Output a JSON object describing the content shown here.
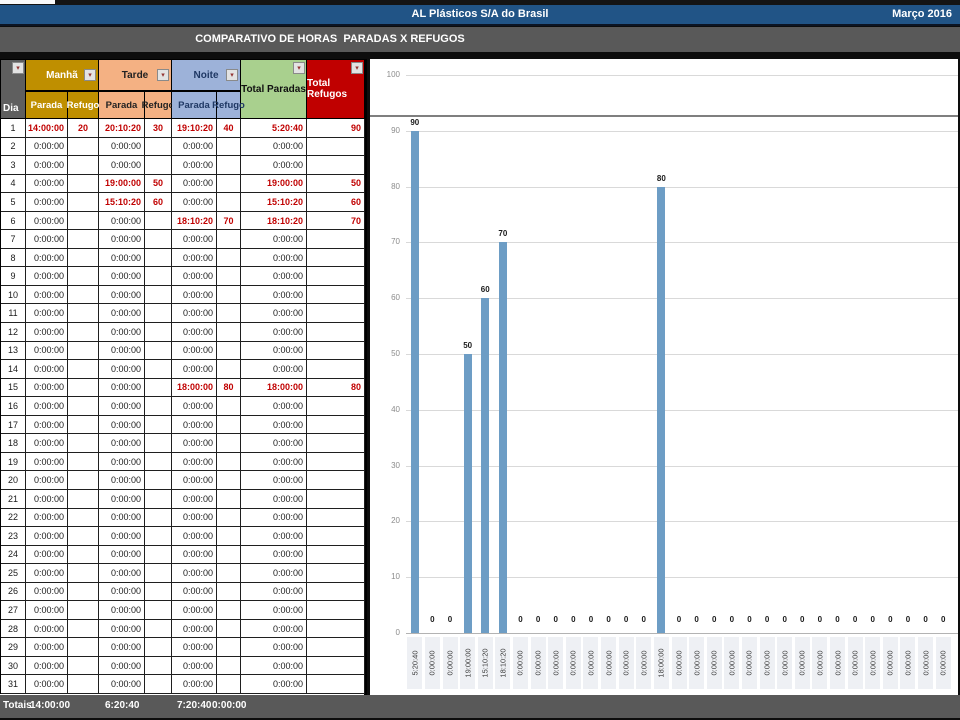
{
  "header": {
    "company": "AL Plásticos S/A do Brasil",
    "period": "Março 2016",
    "title": "COMPARATIVO DE HORAS  PARADAS X REFUGOS",
    "colors": {
      "titlebar_blue": "#215486",
      "band_gray": "#595959",
      "manha_gold": "#BF8F00",
      "tarde_salmon": "#F4B183",
      "noite_blue": "#9DB2D9",
      "total_paradas_green": "#A9D08E",
      "total_refugos_red": "#C00000",
      "value_red": "#C00000",
      "bar_blue": "#6D9DC5"
    }
  },
  "table": {
    "dia_label": "Dia",
    "groups": [
      {
        "label": "Manhã",
        "sub": [
          "Parada",
          "Refugo"
        ]
      },
      {
        "label": "Tarde",
        "sub": [
          "Parada",
          "Refugo"
        ]
      },
      {
        "label": "Noite",
        "sub": [
          "Parada",
          "Refugo"
        ]
      },
      {
        "label": "Total Paradas"
      },
      {
        "label": "Total Refugos"
      }
    ],
    "rows": [
      [
        "1",
        "14:00:00",
        "20",
        "20:10:20",
        "30",
        "19:10:20",
        "40",
        "5:20:40",
        "90"
      ],
      [
        "2",
        "0:00:00",
        "",
        "0:00:00",
        "",
        "0:00:00",
        "",
        "0:00:00",
        ""
      ],
      [
        "3",
        "0:00:00",
        "",
        "0:00:00",
        "",
        "0:00:00",
        "",
        "0:00:00",
        ""
      ],
      [
        "4",
        "0:00:00",
        "",
        "19:00:00",
        "50",
        "0:00:00",
        "",
        "19:00:00",
        "50"
      ],
      [
        "5",
        "0:00:00",
        "",
        "15:10:20",
        "60",
        "0:00:00",
        "",
        "15:10:20",
        "60"
      ],
      [
        "6",
        "0:00:00",
        "",
        "0:00:00",
        "",
        "18:10:20",
        "70",
        "18:10:20",
        "70"
      ],
      [
        "7",
        "0:00:00",
        "",
        "0:00:00",
        "",
        "0:00:00",
        "",
        "0:00:00",
        ""
      ],
      [
        "8",
        "0:00:00",
        "",
        "0:00:00",
        "",
        "0:00:00",
        "",
        "0:00:00",
        ""
      ],
      [
        "9",
        "0:00:00",
        "",
        "0:00:00",
        "",
        "0:00:00",
        "",
        "0:00:00",
        ""
      ],
      [
        "10",
        "0:00:00",
        "",
        "0:00:00",
        "",
        "0:00:00",
        "",
        "0:00:00",
        ""
      ],
      [
        "11",
        "0:00:00",
        "",
        "0:00:00",
        "",
        "0:00:00",
        "",
        "0:00:00",
        ""
      ],
      [
        "12",
        "0:00:00",
        "",
        "0:00:00",
        "",
        "0:00:00",
        "",
        "0:00:00",
        ""
      ],
      [
        "13",
        "0:00:00",
        "",
        "0:00:00",
        "",
        "0:00:00",
        "",
        "0:00:00",
        ""
      ],
      [
        "14",
        "0:00:00",
        "",
        "0:00:00",
        "",
        "0:00:00",
        "",
        "0:00:00",
        ""
      ],
      [
        "15",
        "0:00:00",
        "",
        "0:00:00",
        "",
        "18:00:00",
        "80",
        "18:00:00",
        "80"
      ],
      [
        "16",
        "0:00:00",
        "",
        "0:00:00",
        "",
        "0:00:00",
        "",
        "0:00:00",
        ""
      ],
      [
        "17",
        "0:00:00",
        "",
        "0:00:00",
        "",
        "0:00:00",
        "",
        "0:00:00",
        ""
      ],
      [
        "18",
        "0:00:00",
        "",
        "0:00:00",
        "",
        "0:00:00",
        "",
        "0:00:00",
        ""
      ],
      [
        "19",
        "0:00:00",
        "",
        "0:00:00",
        "",
        "0:00:00",
        "",
        "0:00:00",
        ""
      ],
      [
        "20",
        "0:00:00",
        "",
        "0:00:00",
        "",
        "0:00:00",
        "",
        "0:00:00",
        ""
      ],
      [
        "21",
        "0:00:00",
        "",
        "0:00:00",
        "",
        "0:00:00",
        "",
        "0:00:00",
        ""
      ],
      [
        "22",
        "0:00:00",
        "",
        "0:00:00",
        "",
        "0:00:00",
        "",
        "0:00:00",
        ""
      ],
      [
        "23",
        "0:00:00",
        "",
        "0:00:00",
        "",
        "0:00:00",
        "",
        "0:00:00",
        ""
      ],
      [
        "24",
        "0:00:00",
        "",
        "0:00:00",
        "",
        "0:00:00",
        "",
        "0:00:00",
        ""
      ],
      [
        "25",
        "0:00:00",
        "",
        "0:00:00",
        "",
        "0:00:00",
        "",
        "0:00:00",
        ""
      ],
      [
        "26",
        "0:00:00",
        "",
        "0:00:00",
        "",
        "0:00:00",
        "",
        "0:00:00",
        ""
      ],
      [
        "27",
        "0:00:00",
        "",
        "0:00:00",
        "",
        "0:00:00",
        "",
        "0:00:00",
        ""
      ],
      [
        "28",
        "0:00:00",
        "",
        "0:00:00",
        "",
        "0:00:00",
        "",
        "0:00:00",
        ""
      ],
      [
        "29",
        "0:00:00",
        "",
        "0:00:00",
        "",
        "0:00:00",
        "",
        "0:00:00",
        ""
      ],
      [
        "30",
        "0:00:00",
        "",
        "0:00:00",
        "",
        "0:00:00",
        "",
        "0:00:00",
        ""
      ],
      [
        "31",
        "0:00:00",
        "",
        "0:00:00",
        "",
        "0:00:00",
        "",
        "0:00:00",
        ""
      ]
    ],
    "totals": {
      "label": "Totais",
      "values": [
        "14:00:00",
        "6:20:40",
        "7:20:40",
        "0:00:00"
      ]
    }
  },
  "chart_data": {
    "type": "bar",
    "title": "",
    "xlabel": "",
    "ylabel": "",
    "categories": [
      "5:20:40",
      "0:00:00",
      "0:00:00",
      "19:00:00",
      "15:10:20",
      "18:10:20",
      "0:00:00",
      "0:00:00",
      "0:00:00",
      "0:00:00",
      "0:00:00",
      "0:00:00",
      "0:00:00",
      "0:00:00",
      "18:00:00",
      "0:00:00",
      "0:00:00",
      "0:00:00",
      "0:00:00",
      "0:00:00",
      "0:00:00",
      "0:00:00",
      "0:00:00",
      "0:00:00",
      "0:00:00",
      "0:00:00",
      "0:00:00",
      "0:00:00",
      "0:00:00",
      "0:00:00",
      "0:00:00"
    ],
    "values": [
      90,
      0,
      0,
      50,
      60,
      70,
      0,
      0,
      0,
      0,
      0,
      0,
      0,
      0,
      80,
      0,
      0,
      0,
      0,
      0,
      0,
      0,
      0,
      0,
      0,
      0,
      0,
      0,
      0,
      0,
      0
    ],
    "ylim": [
      0,
      100
    ],
    "yticks": [
      0,
      10,
      20,
      30,
      40,
      50,
      60,
      70,
      80,
      90,
      100
    ],
    "grid": true,
    "data_labels": true,
    "legend": "none",
    "bar_color": "#6D9DC5"
  }
}
